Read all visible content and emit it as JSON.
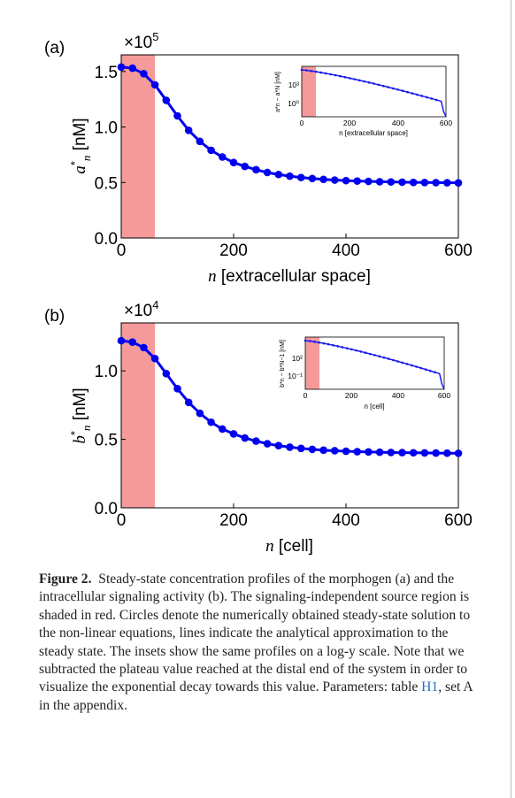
{
  "chart_data": [
    {
      "type": "line",
      "panel_label": "(a)",
      "multiplier": "×10",
      "multiplier_exp": "5",
      "ylabel_sym": "a",
      "ylabel_sup": "*",
      "ylabel_sub": "n",
      "ylabel_unit": "[nM]",
      "xlabel_sym": "n",
      "xlabel_text": "[extracellular space]",
      "xlim": [
        0,
        600
      ],
      "ylim": [
        0,
        1.65
      ],
      "xticks": [
        "0",
        "200",
        "400",
        "600"
      ],
      "yticks": [
        "0.0",
        "0.5",
        "1.0",
        "1.5"
      ],
      "source_region": [
        0,
        60
      ],
      "series": [
        {
          "points": [
            [
              0,
              1.54
            ],
            [
              20,
              1.53
            ],
            [
              40,
              1.48
            ],
            [
              60,
              1.38
            ],
            [
              80,
              1.24
            ],
            [
              100,
              1.1
            ],
            [
              120,
              0.97
            ],
            [
              140,
              0.87
            ],
            [
              160,
              0.79
            ],
            [
              180,
              0.73
            ],
            [
              200,
              0.68
            ],
            [
              220,
              0.645
            ],
            [
              240,
              0.615
            ],
            [
              260,
              0.59
            ],
            [
              280,
              0.572
            ],
            [
              300,
              0.557
            ],
            [
              320,
              0.545
            ],
            [
              340,
              0.536
            ],
            [
              360,
              0.528
            ],
            [
              380,
              0.522
            ],
            [
              400,
              0.517
            ],
            [
              420,
              0.513
            ],
            [
              440,
              0.51
            ],
            [
              460,
              0.507
            ],
            [
              480,
              0.505
            ],
            [
              500,
              0.503
            ],
            [
              520,
              0.501
            ],
            [
              540,
              0.5
            ],
            [
              560,
              0.499
            ],
            [
              580,
              0.498
            ],
            [
              600,
              0.497
            ]
          ]
        }
      ],
      "inset": {
        "ylabel": "a*n − a*N [nM]",
        "xlabel": "n [extracellular space]",
        "xticks": [
          "0",
          "200",
          "400",
          "600"
        ],
        "yticks": [
          "10³",
          "10⁰"
        ]
      }
    },
    {
      "type": "line",
      "panel_label": "(b)",
      "multiplier": "×10",
      "multiplier_exp": "4",
      "ylabel_sym": "b",
      "ylabel_sup": "*",
      "ylabel_sub": "n",
      "ylabel_unit": "[nM]",
      "xlabel_sym": "n",
      "xlabel_text": "[cell]",
      "xlim": [
        0,
        600
      ],
      "ylim": [
        0,
        1.35
      ],
      "xticks": [
        "0",
        "200",
        "400",
        "600"
      ],
      "yticks": [
        "0.0",
        "0.5",
        "1.0"
      ],
      "source_region": [
        0,
        60
      ],
      "series": [
        {
          "points": [
            [
              0,
              1.22
            ],
            [
              20,
              1.21
            ],
            [
              40,
              1.17
            ],
            [
              60,
              1.09
            ],
            [
              80,
              0.98
            ],
            [
              100,
              0.87
            ],
            [
              120,
              0.77
            ],
            [
              140,
              0.69
            ],
            [
              160,
              0.625
            ],
            [
              180,
              0.575
            ],
            [
              200,
              0.54
            ],
            [
              220,
              0.51
            ],
            [
              240,
              0.487
            ],
            [
              260,
              0.468
            ],
            [
              280,
              0.454
            ],
            [
              300,
              0.443
            ],
            [
              320,
              0.434
            ],
            [
              340,
              0.427
            ],
            [
              360,
              0.421
            ],
            [
              380,
              0.417
            ],
            [
              400,
              0.413
            ],
            [
              420,
              0.41
            ],
            [
              440,
              0.408
            ],
            [
              460,
              0.406
            ],
            [
              480,
              0.404
            ],
            [
              500,
              0.403
            ],
            [
              520,
              0.402
            ],
            [
              540,
              0.401
            ],
            [
              560,
              0.4
            ],
            [
              580,
              0.399
            ],
            [
              600,
              0.398
            ]
          ]
        }
      ],
      "inset": {
        "ylabel": "b*n − b*N−1 [nM]",
        "xlabel": "n [cell]",
        "xticks": [
          "0",
          "200",
          "400",
          "600"
        ],
        "yticks": [
          "10²",
          "10⁻¹"
        ]
      }
    }
  ],
  "caption": {
    "label": "Figure 2.",
    "text_before_ref": "Steady-state concentration profiles of the morphogen (a) and the intracellular signaling activity (b). The signaling-independent source region is shaded in red. Circles denote the numerically obtained steady-state solution to the non-linear equations, lines indicate the analytical approximation to the steady state. The insets show the same profiles on a log-y scale. Note that we subtracted the plateau value reached at the distal end of the system in order to visualize the exponential decay towards this value. Parameters: table ",
    "ref": "H1",
    "text_after_ref": ", set A in the appendix."
  }
}
